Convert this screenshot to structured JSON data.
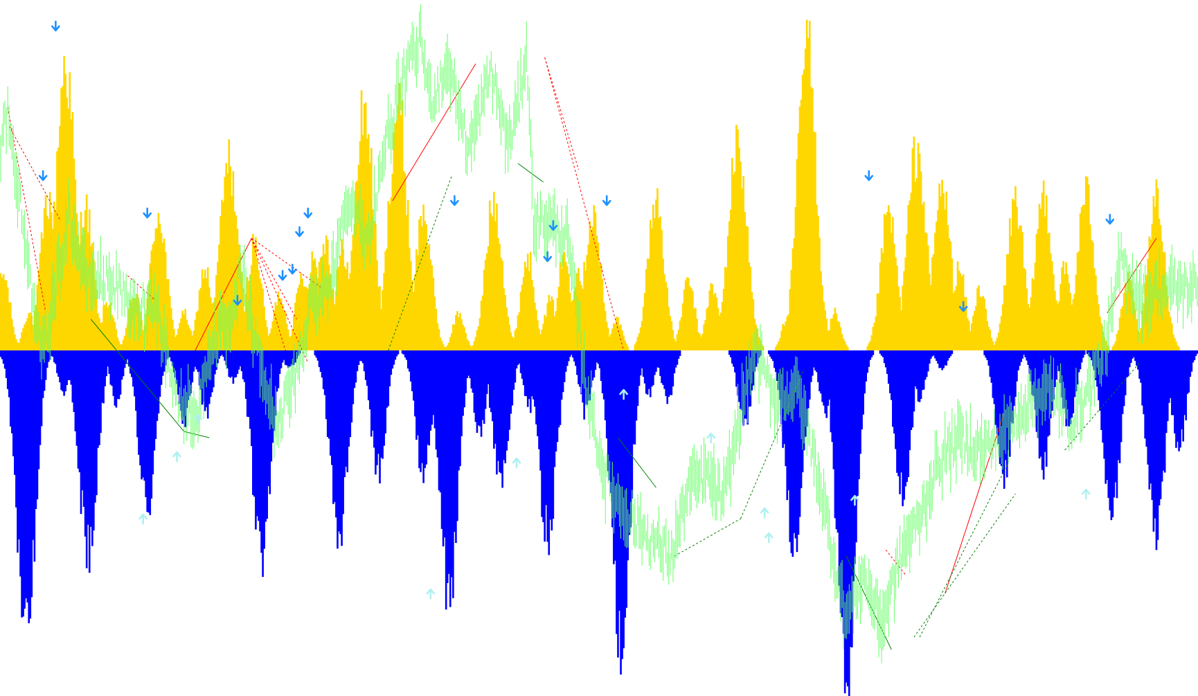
{
  "chart_data": {
    "type": "bar",
    "grid": false,
    "legend": "none",
    "ylim": [
      -5.6,
      5.6
    ],
    "zero_line": 0,
    "colors": {
      "positive_bars": "#FFD700",
      "negative_bars": "#0000FF",
      "price_line": "#66FF66",
      "down_arrows": "#1E90FF",
      "up_arrows": "#B0F0F0",
      "bearish_trendline": "#FF0000",
      "bullish_trendline": "#008000"
    },
    "histogram_peaks": [
      {
        "i": 2,
        "v": 1.2
      },
      {
        "i": 20,
        "v": 0.6
      },
      {
        "i": 34,
        "v": 2.4
      },
      {
        "i": 46,
        "v": 4.6
      },
      {
        "i": 60,
        "v": 2.3
      },
      {
        "i": 76,
        "v": 0.8
      },
      {
        "i": 95,
        "v": 0.9
      },
      {
        "i": 112,
        "v": 2.2
      },
      {
        "i": 130,
        "v": 0.6
      },
      {
        "i": 145,
        "v": 1.3
      },
      {
        "i": 162,
        "v": 3.0
      },
      {
        "i": 180,
        "v": 1.7
      },
      {
        "i": 198,
        "v": 0.9
      },
      {
        "i": 214,
        "v": 1.2
      },
      {
        "i": 222,
        "v": 1.5
      },
      {
        "i": 230,
        "v": 1.8
      },
      {
        "i": 243,
        "v": 1.6
      },
      {
        "i": 258,
        "v": 3.9
      },
      {
        "i": 282,
        "v": 3.9
      },
      {
        "i": 300,
        "v": 2.2
      },
      {
        "i": 325,
        "v": 0.6
      },
      {
        "i": 350,
        "v": 2.4
      },
      {
        "i": 374,
        "v": 1.5
      },
      {
        "i": 390,
        "v": 0.8
      },
      {
        "i": 400,
        "v": 1.5
      },
      {
        "i": 410,
        "v": 1.3
      },
      {
        "i": 420,
        "v": 2.2
      },
      {
        "i": 437,
        "v": 0.5
      },
      {
        "i": 465,
        "v": 2.4
      },
      {
        "i": 488,
        "v": 1.1
      },
      {
        "i": 505,
        "v": 1.0
      },
      {
        "i": 523,
        "v": 3.3
      },
      {
        "i": 558,
        "v": 0.5
      },
      {
        "i": 572,
        "v": 4.9
      },
      {
        "i": 592,
        "v": 0.6
      },
      {
        "i": 630,
        "v": 2.2
      },
      {
        "i": 650,
        "v": 3.2
      },
      {
        "i": 668,
        "v": 2.6
      },
      {
        "i": 680,
        "v": 1.3
      },
      {
        "i": 695,
        "v": 1.0
      },
      {
        "i": 720,
        "v": 2.4
      },
      {
        "i": 740,
        "v": 2.5
      },
      {
        "i": 755,
        "v": 1.3
      },
      {
        "i": 770,
        "v": 2.5
      },
      {
        "i": 800,
        "v": 1.1
      },
      {
        "i": 820,
        "v": 2.4
      }
    ],
    "histogram_troughs": [
      {
        "i": 18,
        "v": -4.6
      },
      {
        "i": 45,
        "v": -0.7
      },
      {
        "i": 62,
        "v": -3.2
      },
      {
        "i": 82,
        "v": -0.8
      },
      {
        "i": 104,
        "v": -2.5
      },
      {
        "i": 130,
        "v": -1.1
      },
      {
        "i": 146,
        "v": -1.0
      },
      {
        "i": 165,
        "v": -0.5
      },
      {
        "i": 185,
        "v": -3.2
      },
      {
        "i": 205,
        "v": -0.3
      },
      {
        "i": 240,
        "v": -2.9
      },
      {
        "i": 268,
        "v": -1.9
      },
      {
        "i": 300,
        "v": -2.0
      },
      {
        "i": 318,
        "v": -3.9
      },
      {
        "i": 340,
        "v": -1.3
      },
      {
        "i": 355,
        "v": -2.2
      },
      {
        "i": 375,
        "v": -0.9
      },
      {
        "i": 388,
        "v": -2.9
      },
      {
        "i": 415,
        "v": -1.0
      },
      {
        "i": 440,
        "v": -4.7
      },
      {
        "i": 460,
        "v": -0.7
      },
      {
        "i": 473,
        "v": -0.8
      },
      {
        "i": 528,
        "v": -1.2
      },
      {
        "i": 563,
        "v": -3.0
      },
      {
        "i": 585,
        "v": -1.0
      },
      {
        "i": 600,
        "v": -5.1
      },
      {
        "i": 640,
        "v": -2.3
      },
      {
        "i": 652,
        "v": -0.8
      },
      {
        "i": 668,
        "v": -0.3
      },
      {
        "i": 712,
        "v": -2.0
      },
      {
        "i": 740,
        "v": -1.9
      },
      {
        "i": 758,
        "v": -1.2
      },
      {
        "i": 788,
        "v": -2.6
      },
      {
        "i": 820,
        "v": -2.8
      },
      {
        "i": 836,
        "v": -1.6
      }
    ],
    "down_arrows": [
      {
        "i": 39,
        "v": 5.2
      },
      {
        "i": 30,
        "v": 2.8
      },
      {
        "i": 104,
        "v": 2.2
      },
      {
        "i": 168,
        "v": 0.8
      },
      {
        "i": 200,
        "v": 1.2
      },
      {
        "i": 207,
        "v": 1.3
      },
      {
        "i": 212,
        "v": 1.9
      },
      {
        "i": 218,
        "v": 2.2
      },
      {
        "i": 322,
        "v": 2.4
      },
      {
        "i": 388,
        "v": 1.5
      },
      {
        "i": 392,
        "v": 2.0
      },
      {
        "i": 430,
        "v": 2.4
      },
      {
        "i": 616,
        "v": 2.8
      },
      {
        "i": 683,
        "v": 0.7
      },
      {
        "i": 787,
        "v": 2.1
      }
    ],
    "up_arrows": [
      {
        "i": 101,
        "v": -2.7
      },
      {
        "i": 125,
        "v": -1.7
      },
      {
        "i": 140,
        "v": -1.1
      },
      {
        "i": 305,
        "v": -3.9
      },
      {
        "i": 366,
        "v": -1.8
      },
      {
        "i": 442,
        "v": -0.7
      },
      {
        "i": 504,
        "v": -1.4
      },
      {
        "i": 542,
        "v": -2.6
      },
      {
        "i": 545,
        "v": -3.0
      },
      {
        "i": 606,
        "v": -2.4
      },
      {
        "i": 770,
        "v": -2.3
      }
    ],
    "price_anchors": [
      {
        "i": 0,
        "v": 3.2
      },
      {
        "i": 5,
        "v": 3.9
      },
      {
        "i": 10,
        "v": 2.8
      },
      {
        "i": 16,
        "v": 2.2
      },
      {
        "i": 24,
        "v": 0.4
      },
      {
        "i": 30,
        "v": 0.0
      },
      {
        "i": 40,
        "v": 1.1
      },
      {
        "i": 48,
        "v": 2.2
      },
      {
        "i": 60,
        "v": 1.2
      },
      {
        "i": 80,
        "v": 1.1
      },
      {
        "i": 95,
        "v": 0.6
      },
      {
        "i": 110,
        "v": 0.8
      },
      {
        "i": 125,
        "v": -0.8
      },
      {
        "i": 140,
        "v": -1.0
      },
      {
        "i": 150,
        "v": 0.2
      },
      {
        "i": 165,
        "v": 0.4
      },
      {
        "i": 170,
        "v": 1.3
      },
      {
        "i": 180,
        "v": 0.2
      },
      {
        "i": 195,
        "v": -1.2
      },
      {
        "i": 210,
        "v": -0.4
      },
      {
        "i": 220,
        "v": 0.8
      },
      {
        "i": 235,
        "v": 1.1
      },
      {
        "i": 245,
        "v": 2.5
      },
      {
        "i": 260,
        "v": 1.7
      },
      {
        "i": 272,
        "v": 3.2
      },
      {
        "i": 285,
        "v": 4.3
      },
      {
        "i": 298,
        "v": 5.0
      },
      {
        "i": 305,
        "v": 4.0
      },
      {
        "i": 318,
        "v": 4.6
      },
      {
        "i": 332,
        "v": 3.2
      },
      {
        "i": 348,
        "v": 4.5
      },
      {
        "i": 360,
        "v": 3.3
      },
      {
        "i": 368,
        "v": 4.0
      },
      {
        "i": 373,
        "v": 4.9
      },
      {
        "i": 378,
        "v": 2.1
      },
      {
        "i": 392,
        "v": 2.0
      },
      {
        "i": 402,
        "v": 1.8
      },
      {
        "i": 415,
        "v": -0.5
      },
      {
        "i": 428,
        "v": -2.0
      },
      {
        "i": 440,
        "v": -2.5
      },
      {
        "i": 460,
        "v": -3.0
      },
      {
        "i": 476,
        "v": -3.3
      },
      {
        "i": 488,
        "v": -2.2
      },
      {
        "i": 500,
        "v": -2.0
      },
      {
        "i": 513,
        "v": -2.4
      },
      {
        "i": 523,
        "v": -1.2
      },
      {
        "i": 535,
        "v": 0.0
      },
      {
        "i": 550,
        "v": -0.8
      },
      {
        "i": 565,
        "v": -0.6
      },
      {
        "i": 580,
        "v": -2.0
      },
      {
        "i": 590,
        "v": -3.2
      },
      {
        "i": 600,
        "v": -4.3
      },
      {
        "i": 612,
        "v": -3.6
      },
      {
        "i": 625,
        "v": -4.4
      },
      {
        "i": 640,
        "v": -3.2
      },
      {
        "i": 652,
        "v": -2.7
      },
      {
        "i": 665,
        "v": -1.8
      },
      {
        "i": 680,
        "v": -1.4
      },
      {
        "i": 695,
        "v": -1.6
      },
      {
        "i": 710,
        "v": -1.4
      },
      {
        "i": 722,
        "v": -1.0
      },
      {
        "i": 735,
        "v": -0.7
      },
      {
        "i": 750,
        "v": -0.7
      },
      {
        "i": 758,
        "v": -1.2
      },
      {
        "i": 770,
        "v": -0.7
      },
      {
        "i": 785,
        "v": 0.1
      },
      {
        "i": 795,
        "v": 1.5
      },
      {
        "i": 808,
        "v": 0.8
      },
      {
        "i": 822,
        "v": 1.0
      },
      {
        "i": 835,
        "v": 1.0
      }
    ],
    "trendlines": [
      {
        "from": {
          "i": 5,
          "v": 3.9
        },
        "to": {
          "i": 32,
          "v": 0.6
        },
        "color": "red",
        "style": "dashed"
      },
      {
        "from": {
          "i": 6,
          "v": 3.6
        },
        "to": {
          "i": 42,
          "v": 2.1
        },
        "color": "red",
        "style": "dashed"
      },
      {
        "from": {
          "i": 90,
          "v": 1.2
        },
        "to": {
          "i": 110,
          "v": 0.8
        },
        "color": "red",
        "style": "dashed"
      },
      {
        "from": {
          "i": 178,
          "v": 1.8
        },
        "to": {
          "i": 138,
          "v": 0.0
        },
        "color": "red",
        "style": "solid"
      },
      {
        "from": {
          "i": 178,
          "v": 1.8
        },
        "to": {
          "i": 218,
          "v": -0.2
        },
        "color": "red",
        "style": "dashed"
      },
      {
        "from": {
          "i": 178,
          "v": 1.8
        },
        "to": {
          "i": 210,
          "v": 0.5
        },
        "color": "red",
        "style": "dashed"
      },
      {
        "from": {
          "i": 178,
          "v": 1.8
        },
        "to": {
          "i": 228,
          "v": 1.0
        },
        "color": "red",
        "style": "dashed"
      },
      {
        "from": {
          "i": 178,
          "v": 1.8
        },
        "to": {
          "i": 202,
          "v": 0.0
        },
        "color": "red",
        "style": "dashed"
      },
      {
        "from": {
          "i": 278,
          "v": 2.4
        },
        "to": {
          "i": 337,
          "v": 4.6
        },
        "color": "red",
        "style": "solid"
      },
      {
        "from": {
          "i": 386,
          "v": 4.7
        },
        "to": {
          "i": 410,
          "v": 2.9
        },
        "color": "red",
        "style": "dashed"
      },
      {
        "from": {
          "i": 386,
          "v": 4.7
        },
        "to": {
          "i": 442,
          "v": 0.0
        },
        "color": "red",
        "style": "dashed"
      },
      {
        "from": {
          "i": 628,
          "v": -3.2
        },
        "to": {
          "i": 642,
          "v": -3.6
        },
        "color": "red",
        "style": "dashed"
      },
      {
        "from": {
          "i": 670,
          "v": -3.9
        },
        "to": {
          "i": 712,
          "v": -1.0
        },
        "color": "red",
        "style": "solid"
      },
      {
        "from": {
          "i": 785,
          "v": 0.6
        },
        "to": {
          "i": 820,
          "v": 1.8
        },
        "color": "red",
        "style": "solid"
      },
      {
        "from": {
          "i": 64,
          "v": 0.5
        },
        "to": {
          "i": 130,
          "v": -1.3
        },
        "color": "green",
        "style": "solid"
      },
      {
        "from": {
          "i": 130,
          "v": -1.3
        },
        "to": {
          "i": 148,
          "v": -1.4
        },
        "color": "green",
        "style": "solid"
      },
      {
        "from": {
          "i": 275,
          "v": 0.0
        },
        "to": {
          "i": 320,
          "v": 2.8
        },
        "color": "green",
        "style": "dashed"
      },
      {
        "from": {
          "i": 367,
          "v": 3.0
        },
        "to": {
          "i": 385,
          "v": 2.7
        },
        "color": "green",
        "style": "solid"
      },
      {
        "from": {
          "i": 438,
          "v": -1.4
        },
        "to": {
          "i": 465,
          "v": -2.2
        },
        "color": "green",
        "style": "solid"
      },
      {
        "from": {
          "i": 478,
          "v": -3.3
        },
        "to": {
          "i": 525,
          "v": -2.7
        },
        "color": "green",
        "style": "dashed"
      },
      {
        "from": {
          "i": 525,
          "v": -2.7
        },
        "to": {
          "i": 570,
          "v": -0.3
        },
        "color": "green",
        "style": "dashed"
      },
      {
        "from": {
          "i": 600,
          "v": -3.3
        },
        "to": {
          "i": 632,
          "v": -4.8
        },
        "color": "green",
        "style": "solid"
      },
      {
        "from": {
          "i": 648,
          "v": -4.6
        },
        "to": {
          "i": 720,
          "v": -2.3
        },
        "color": "green",
        "style": "dashed"
      },
      {
        "from": {
          "i": 652,
          "v": -4.6
        },
        "to": {
          "i": 715,
          "v": -1.8
        },
        "color": "green",
        "style": "dashed"
      },
      {
        "from": {
          "i": 755,
          "v": -1.6
        },
        "to": {
          "i": 808,
          "v": -0.2
        },
        "color": "green",
        "style": "dashed"
      }
    ]
  }
}
